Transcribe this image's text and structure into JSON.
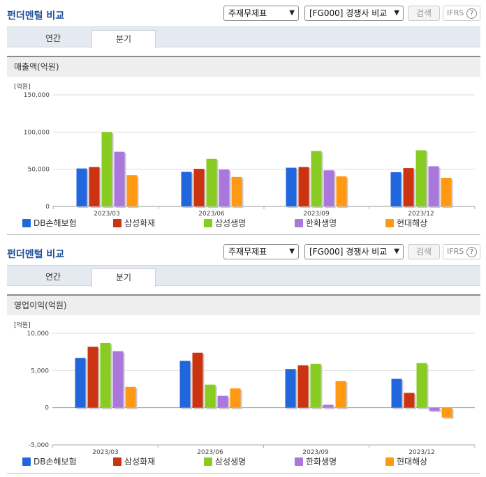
{
  "panels": [
    {
      "title": "펀더멘털 비교",
      "select_1": "주재무제표",
      "select_2": "[FG000] 경쟁사 비교",
      "search_label": "검색",
      "ifrs_label": "IFRS",
      "help_label": "?",
      "tabs": [
        "연간",
        "분기"
      ],
      "active_tab": 1,
      "section_title": "매출액(억원)",
      "unit_label": "[억원]"
    },
    {
      "title": "펀더멘털 비교",
      "select_1": "주재무제표",
      "select_2": "[FG000] 경쟁사 비교",
      "search_label": "검색",
      "ifrs_label": "IFRS",
      "help_label": "?",
      "tabs": [
        "연간",
        "분기"
      ],
      "active_tab": 1,
      "section_title": "영업이익(억원)",
      "unit_label": "[억원]"
    }
  ],
  "colors": {
    "DB손해보험": "#2266dd",
    "삼성화재": "#cc3311",
    "삼성생명": "#88cc22",
    "한화생명": "#aa77dd",
    "현대해상": "#ff9911"
  },
  "chart_data": [
    {
      "type": "bar",
      "title": "매출액(억원)",
      "ylabel": "[억원]",
      "categories": [
        "2023/03",
        "2023/06",
        "2023/09",
        "2023/12"
      ],
      "ylim": [
        0,
        150000
      ],
      "yticks": [
        0,
        50000,
        100000,
        150000
      ],
      "ytick_labels": [
        "0",
        "50,000",
        "100,000",
        "150,000"
      ],
      "grid": true,
      "legend": "bottom",
      "series": [
        {
          "name": "DB손해보험",
          "values": [
            51000,
            46500,
            52000,
            46000
          ]
        },
        {
          "name": "삼성화재",
          "values": [
            53000,
            50500,
            53000,
            51500
          ]
        },
        {
          "name": "삼성생명",
          "values": [
            100000,
            64000,
            74500,
            75500
          ]
        },
        {
          "name": "한화생명",
          "values": [
            73500,
            49500,
            48500,
            54000
          ]
        },
        {
          "name": "현대해상",
          "values": [
            42000,
            39500,
            40500,
            38500
          ]
        }
      ]
    },
    {
      "type": "bar",
      "title": "영업이익(억원)",
      "ylabel": "[억원]",
      "categories": [
        "2023/03",
        "2023/06",
        "2023/09",
        "2023/12"
      ],
      "ylim": [
        -5000,
        10000
      ],
      "yticks": [
        -5000,
        0,
        5000,
        10000
      ],
      "ytick_labels": [
        "-5,000",
        "0",
        "5,000",
        "10,000"
      ],
      "grid": true,
      "legend": "bottom",
      "series": [
        {
          "name": "DB손해보험",
          "values": [
            6700,
            6300,
            5200,
            3900
          ]
        },
        {
          "name": "삼성화재",
          "values": [
            8200,
            7400,
            5700,
            2000
          ]
        },
        {
          "name": "삼성생명",
          "values": [
            8700,
            3100,
            5900,
            6000
          ]
        },
        {
          "name": "한화생명",
          "values": [
            7600,
            1600,
            400,
            -400
          ]
        },
        {
          "name": "현대해상",
          "values": [
            2800,
            2600,
            3600,
            -1300
          ]
        }
      ]
    }
  ]
}
